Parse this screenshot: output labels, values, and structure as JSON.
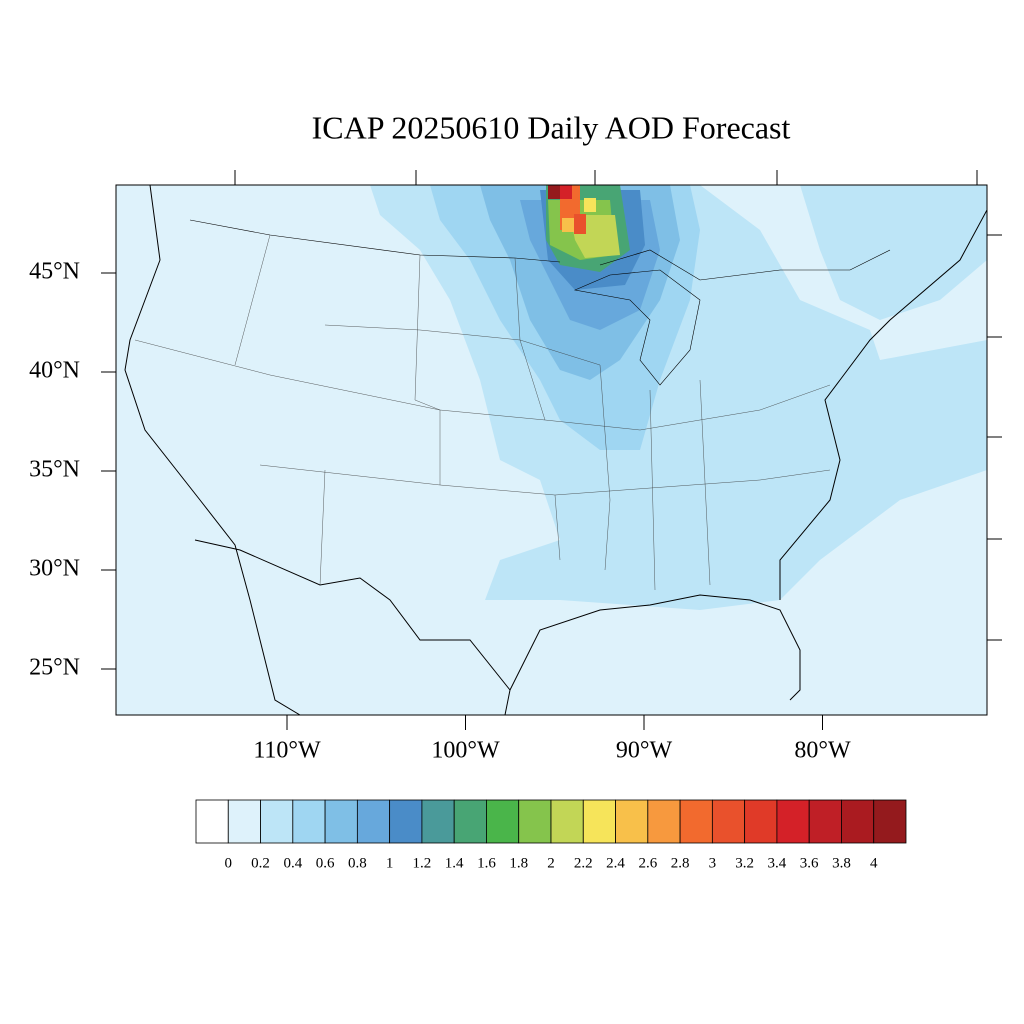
{
  "title": "ICAP 20250610 Daily AOD Forecast",
  "map": {
    "lat_ticks": [
      {
        "value": 45,
        "label": "45°N"
      },
      {
        "value": 40,
        "label": "40°N"
      },
      {
        "value": 35,
        "label": "35°N"
      },
      {
        "value": 30,
        "label": "30°N"
      },
      {
        "value": 25,
        "label": "25°N"
      }
    ],
    "lon_ticks": [
      {
        "value": -110,
        "label": "110°W"
      },
      {
        "value": -100,
        "label": "100°W"
      },
      {
        "value": -90,
        "label": "90°W"
      },
      {
        "value": -80,
        "label": "80°W"
      }
    ]
  },
  "colorbar": {
    "levels": [
      0,
      0.2,
      0.4,
      0.6,
      0.8,
      1,
      1.2,
      1.4,
      1.6,
      1.8,
      2,
      2.2,
      2.4,
      2.6,
      2.8,
      3,
      3.2,
      3.4,
      3.6,
      3.8,
      4
    ],
    "colors": [
      "#ffffff",
      "#def2fb",
      "#bde5f7",
      "#9fd6f2",
      "#7fbfe6",
      "#67a8dc",
      "#4a8cc8",
      "#4a9a9a",
      "#48a574",
      "#4ab54a",
      "#85c44c",
      "#c2d656",
      "#f6e45a",
      "#f8c04a",
      "#f7993e",
      "#f26a2e",
      "#e9512c",
      "#e03a28",
      "#d42128",
      "#bf1f26",
      "#aa1b20",
      "#941a1d"
    ]
  }
}
